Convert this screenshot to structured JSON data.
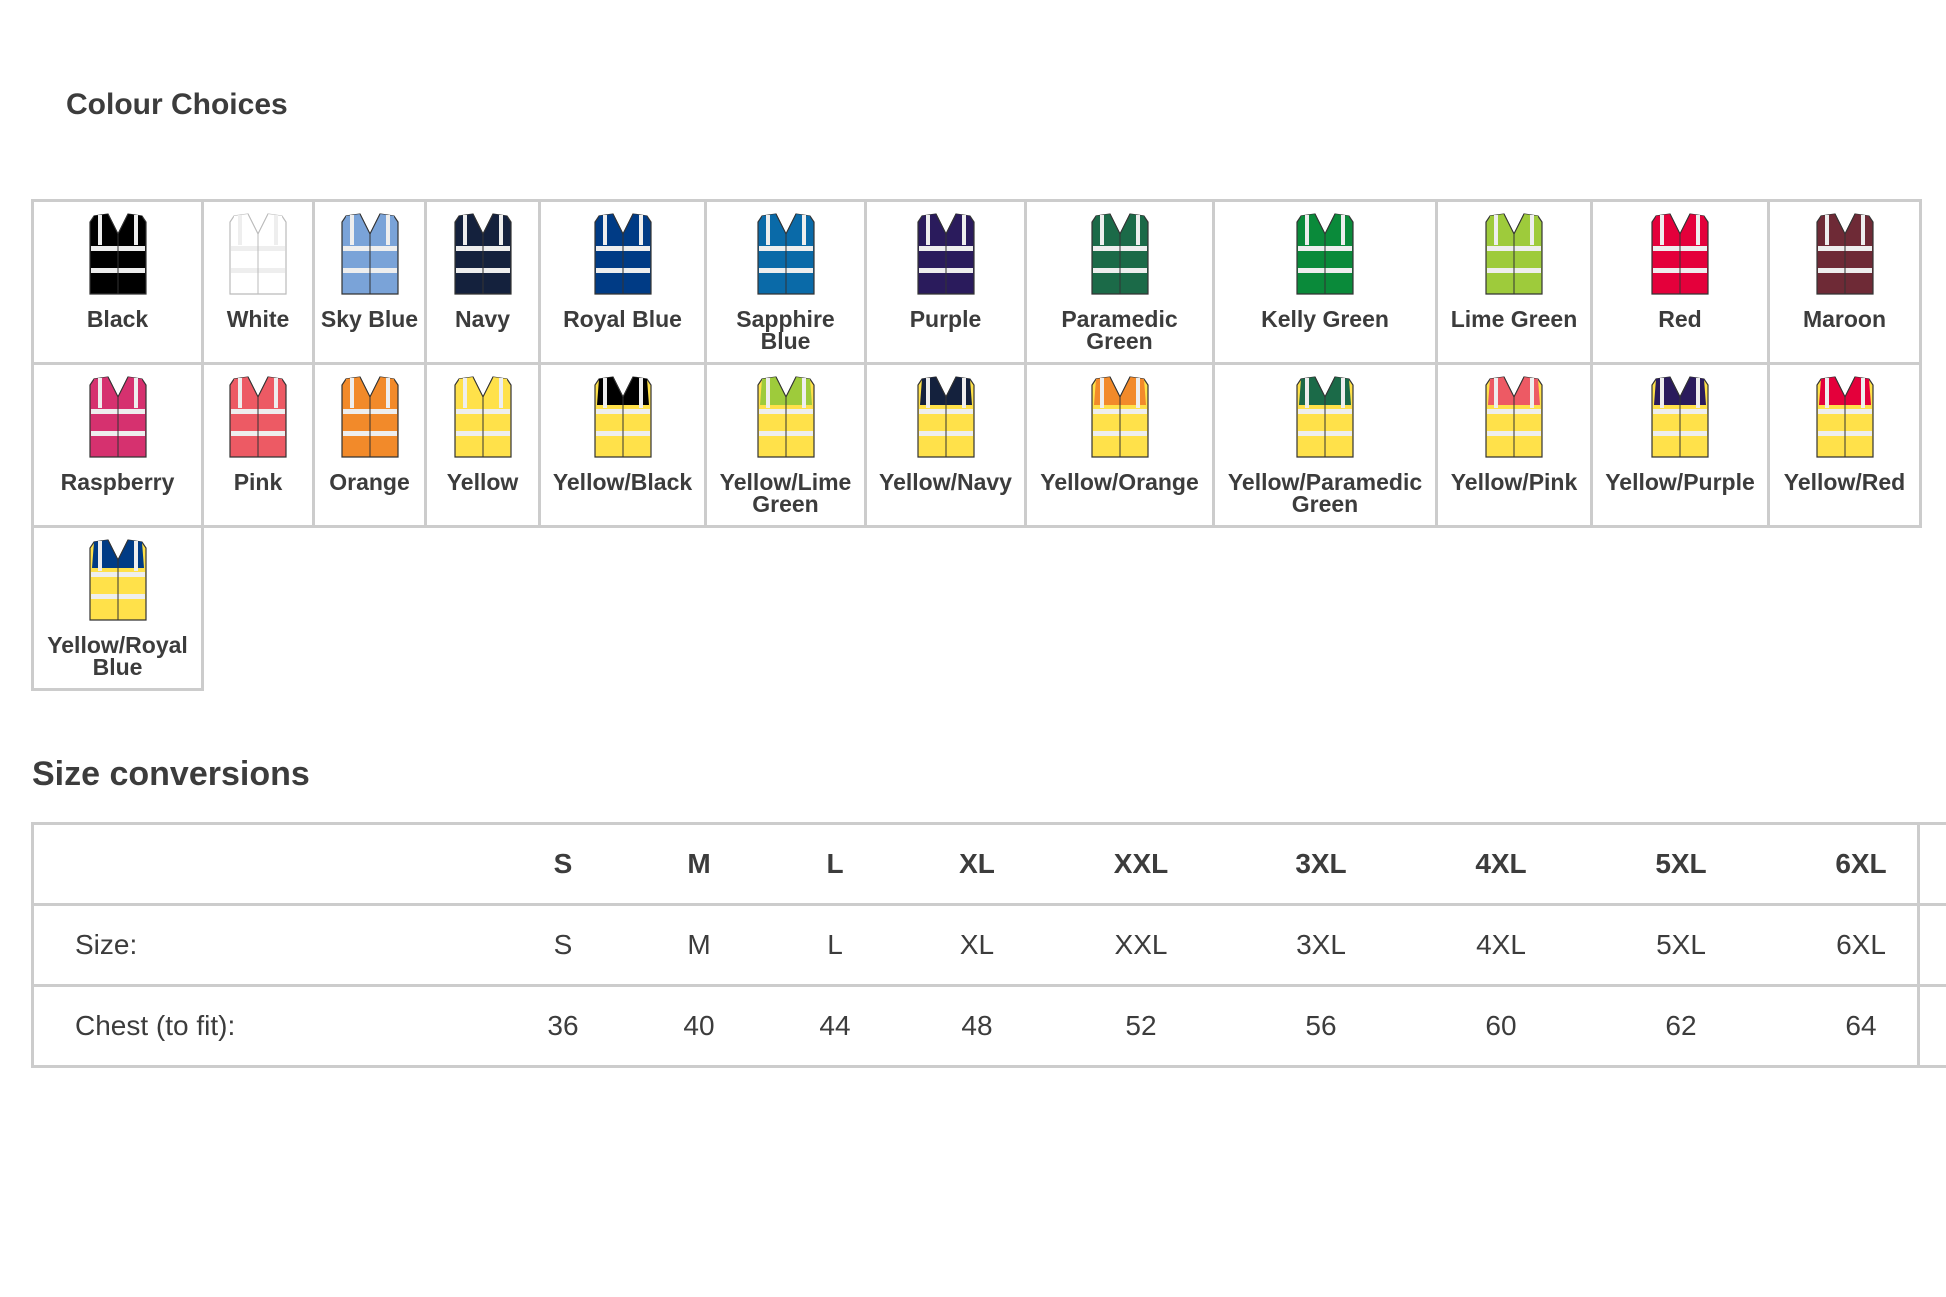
{
  "colour_section": {
    "title": "Colour Choices",
    "colors": [
      {
        "name": "Black",
        "body": "#000000",
        "panel": "#000000"
      },
      {
        "name": "White",
        "body": "#ffffff",
        "panel": "#ffffff"
      },
      {
        "name": "Sky Blue",
        "body": "#7aa3d8",
        "panel": "#7aa3d8"
      },
      {
        "name": "Navy",
        "body": "#14213d",
        "panel": "#14213d"
      },
      {
        "name": "Royal Blue",
        "body": "#003b85",
        "panel": "#003b85"
      },
      {
        "name": "Sapphire Blue",
        "body": "#0a6aa8",
        "panel": "#0a6aa8"
      },
      {
        "name": "Purple",
        "body": "#2a1b5c",
        "panel": "#2a1b5c"
      },
      {
        "name": "Paramedic Green",
        "body": "#1b6a48",
        "panel": "#1b6a48"
      },
      {
        "name": "Kelly Green",
        "body": "#0a8a3a",
        "panel": "#0a8a3a"
      },
      {
        "name": "Lime Green",
        "body": "#9ecb3b",
        "panel": "#9ecb3b"
      },
      {
        "name": "Red",
        "body": "#e4003b",
        "panel": "#e4003b"
      },
      {
        "name": "Maroon",
        "body": "#6e2a36",
        "panel": "#6e2a36"
      },
      {
        "name": "Raspberry",
        "body": "#d6316f",
        "panel": "#d6316f"
      },
      {
        "name": "Pink",
        "body": "#ed5a64",
        "panel": "#ed5a64"
      },
      {
        "name": "Orange",
        "body": "#f28a2a",
        "panel": "#f28a2a"
      },
      {
        "name": "Yellow",
        "body": "#ffe14a",
        "panel": "#ffe14a"
      },
      {
        "name": "Yellow/Black",
        "body": "#ffe14a",
        "panel": "#000000"
      },
      {
        "name": "Yellow/Lime Green",
        "body": "#ffe14a",
        "panel": "#9ecb3b"
      },
      {
        "name": "Yellow/Navy",
        "body": "#ffe14a",
        "panel": "#14213d"
      },
      {
        "name": "Yellow/Orange",
        "body": "#ffe14a",
        "panel": "#f28a2a"
      },
      {
        "name": "Yellow/Paramedic Green",
        "body": "#ffe14a",
        "panel": "#1b6a48"
      },
      {
        "name": "Yellow/Pink",
        "body": "#ffe14a",
        "panel": "#ed5a64"
      },
      {
        "name": "Yellow/Purple",
        "body": "#ffe14a",
        "panel": "#2a1b5c"
      },
      {
        "name": "Yellow/Red",
        "body": "#ffe14a",
        "panel": "#e4003b"
      },
      {
        "name": "Yellow/Royal Blue",
        "body": "#ffe14a",
        "panel": "#003b85"
      }
    ]
  },
  "size_section": {
    "title": "Size conversions",
    "headers": [
      "",
      "S",
      "M",
      "L",
      "XL",
      "XXL",
      "3XL",
      "4XL",
      "5XL",
      "6XL"
    ],
    "rows": [
      {
        "label": "Size:",
        "values": [
          "S",
          "M",
          "L",
          "XL",
          "XXL",
          "3XL",
          "4XL",
          "5XL",
          "6XL"
        ]
      },
      {
        "label": "Chest (to fit):",
        "values": [
          "36",
          "40",
          "44",
          "48",
          "52",
          "56",
          "60",
          "62",
          "64"
        ]
      }
    ]
  }
}
